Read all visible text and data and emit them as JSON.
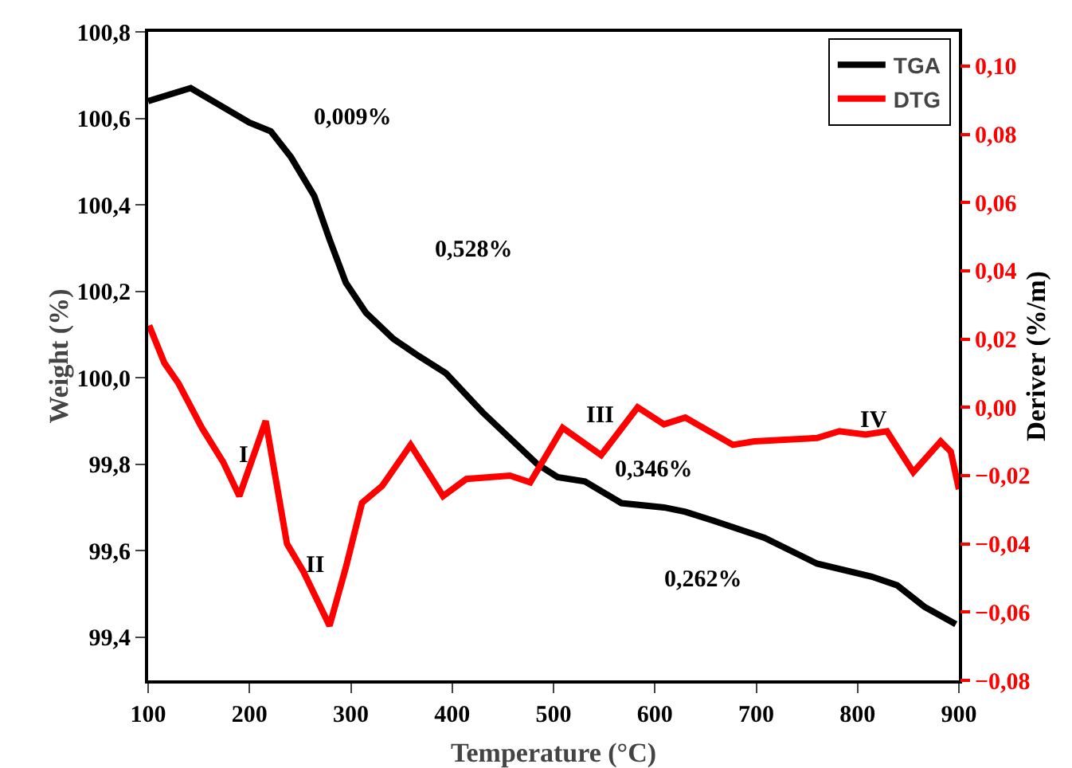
{
  "chart_data": {
    "type": "line",
    "xlabel": "Temperature (°C)",
    "ylabel": "Weight (%)",
    "y2label": "Deriver (%/m)",
    "xlim": [
      100,
      900
    ],
    "xticks": [
      100,
      200,
      300,
      400,
      500,
      600,
      700,
      800,
      900
    ],
    "ylim": [
      99.3,
      100.8
    ],
    "yticks": [
      {
        "value": 99.4,
        "label": "99,4"
      },
      {
        "value": 99.6,
        "label": "99,6"
      },
      {
        "value": 99.8,
        "label": "99,8"
      },
      {
        "value": 100.0,
        "label": "100,0"
      },
      {
        "value": 100.2,
        "label": "100,2"
      },
      {
        "value": 100.4,
        "label": "100,4"
      },
      {
        "value": 100.6,
        "label": "100,6"
      },
      {
        "value": 100.8,
        "label": "100,8"
      }
    ],
    "y2lim": [
      -0.08,
      0.11
    ],
    "y2ticks": [
      {
        "value": -0.08,
        "label": "−0,08"
      },
      {
        "value": -0.06,
        "label": "−0,06"
      },
      {
        "value": -0.04,
        "label": "−0,04"
      },
      {
        "value": -0.02,
        "label": "−0,02"
      },
      {
        "value": 0,
        "label": "0,00"
      },
      {
        "value": 0.02,
        "label": "0,02"
      },
      {
        "value": 0.04,
        "label": "0,04"
      },
      {
        "value": 0.06,
        "label": "0,06"
      },
      {
        "value": 0.08,
        "label": "0,08"
      },
      {
        "value": 0.1,
        "label": "0,10"
      }
    ],
    "grid": false,
    "legend": "top right",
    "marker": "none",
    "line_style": "solid",
    "series": [
      {
        "name": "TGA",
        "color": "#000000",
        "x": [
          100,
          142,
          200,
          221,
          241,
          264,
          279,
          295,
          315,
          342,
          367,
          394,
          430,
          484,
          504,
          531,
          567,
          609,
          630,
          657,
          708,
          760,
          814,
          839,
          866,
          897
        ],
        "values": [
          100.64,
          100.67,
          100.59,
          100.57,
          100.51,
          100.42,
          100.32,
          100.22,
          100.15,
          100.09,
          100.05,
          100.01,
          99.92,
          99.8,
          99.77,
          99.76,
          99.71,
          99.7,
          99.69,
          99.67,
          99.63,
          99.57,
          99.54,
          99.52,
          99.47,
          99.43
        ]
      },
      {
        "name": "DTG",
        "color": "#ff0000",
        "axis": "y2",
        "x": [
          101,
          116,
          130,
          153,
          174,
          190,
          216,
          237,
          253,
          279,
          295,
          311,
          331,
          359,
          391,
          414,
          457,
          477,
          509,
          547,
          583,
          609,
          630,
          677,
          698,
          760,
          782,
          808,
          829,
          855,
          882,
          892,
          900
        ],
        "values": [
          0.024,
          0.013,
          0.007,
          -0.006,
          -0.016,
          -0.026,
          -0.004,
          -0.04,
          -0.048,
          -0.064,
          -0.047,
          -0.028,
          -0.023,
          -0.011,
          -0.026,
          -0.021,
          -0.02,
          -0.022,
          -0.006,
          -0.014,
          0.0,
          -0.005,
          -0.003,
          -0.011,
          -0.01,
          -0.009,
          -0.007,
          -0.008,
          -0.007,
          -0.019,
          -0.01,
          -0.013,
          -0.024
        ]
      }
    ],
    "annotations": [
      "0,009%",
      "0,528%",
      "0,346%",
      "0,262%",
      "I",
      "II",
      "III",
      "IV"
    ]
  }
}
